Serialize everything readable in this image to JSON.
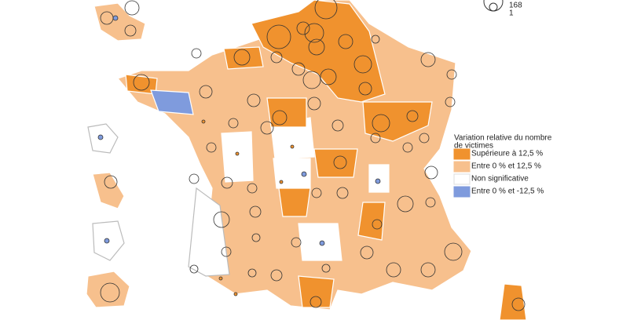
{
  "legend": {
    "title_lines": [
      "Variation relative du nombre",
      "de victimes"
    ],
    "items": [
      {
        "label": "Supérieure à 12,5 %",
        "color": "#f0922e"
      },
      {
        "label": "Entre 0 % et 12,5 %",
        "color": "#f7c08d"
      },
      {
        "label": "Non significative",
        "color": "#ffffff"
      },
      {
        "label": "Entre 0 % et -12,5 %",
        "color": "#7f9bdd"
      }
    ]
  },
  "size_legend": {
    "labels": [
      168,
      1
    ]
  }
}
